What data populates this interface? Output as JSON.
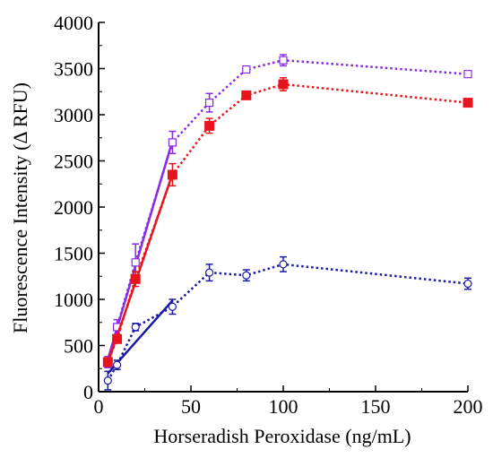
{
  "chart_data": {
    "type": "line",
    "title": "",
    "xlabel": "Horseradish Peroxidase (ng/mL)",
    "ylabel": "Fluorescence Intensity (Δ RFU)",
    "xlim": [
      0,
      200
    ],
    "ylim": [
      0,
      4000
    ],
    "x_ticks": [
      0,
      50,
      100,
      150,
      200
    ],
    "y_ticks": [
      0,
      500,
      1000,
      1500,
      2000,
      2500,
      3000,
      3500,
      4000
    ],
    "grid": false,
    "legend": "none",
    "series": [
      {
        "marker": "open-square",
        "color": "#8a2be2",
        "points": [
          {
            "x": 5,
            "y": 320,
            "err": 60
          },
          {
            "x": 10,
            "y": 700,
            "err": 80
          },
          {
            "x": 20,
            "y": 1400,
            "err": 200
          },
          {
            "x": 40,
            "y": 2700,
            "err": 120
          },
          {
            "x": 60,
            "y": 3130,
            "err": 100
          },
          {
            "x": 80,
            "y": 3490,
            "err": 30
          },
          {
            "x": 100,
            "y": 3590,
            "err": 60
          },
          {
            "x": 200,
            "y": 3440,
            "err": 25
          }
        ],
        "fit": {
          "from": 5,
          "to": 40
        }
      },
      {
        "marker": "filled-square",
        "color": "#e8141d",
        "points": [
          {
            "x": 5,
            "y": 320,
            "err": 40
          },
          {
            "x": 10,
            "y": 570,
            "err": 40
          },
          {
            "x": 20,
            "y": 1220,
            "err": 80
          },
          {
            "x": 40,
            "y": 2350,
            "err": 120
          },
          {
            "x": 60,
            "y": 2880,
            "err": 80
          },
          {
            "x": 80,
            "y": 3210,
            "err": 40
          },
          {
            "x": 100,
            "y": 3330,
            "err": 70
          },
          {
            "x": 200,
            "y": 3130,
            "err": 30
          }
        ],
        "fit": {
          "from": 5,
          "to": 40
        }
      },
      {
        "marker": "open-circle",
        "color": "#1a1aa8",
        "points": [
          {
            "x": 5,
            "y": 120,
            "err": 100
          },
          {
            "x": 10,
            "y": 290,
            "err": 50
          },
          {
            "x": 20,
            "y": 700,
            "err": 40
          },
          {
            "x": 40,
            "y": 920,
            "err": 80
          },
          {
            "x": 60,
            "y": 1290,
            "err": 90
          },
          {
            "x": 80,
            "y": 1260,
            "err": 60
          },
          {
            "x": 100,
            "y": 1380,
            "err": 80
          },
          {
            "x": 200,
            "y": 1170,
            "err": 60
          }
        ],
        "fit": {
          "from": 5,
          "to": 40
        }
      }
    ]
  }
}
